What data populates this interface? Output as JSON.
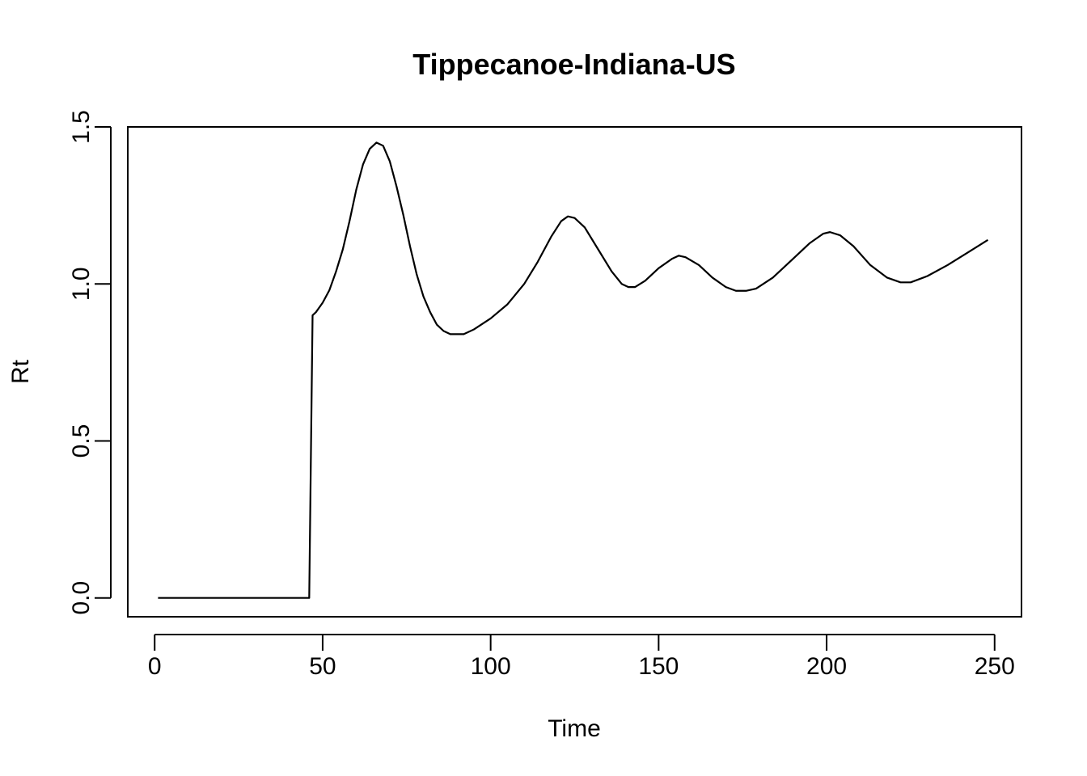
{
  "chart_data": {
    "type": "line",
    "title": "Tippecanoe-Indiana-US",
    "xlabel": "Time",
    "ylabel": "Rt",
    "xlim": [
      -8,
      258
    ],
    "ylim": [
      -0.06,
      1.5
    ],
    "xticks": [
      0,
      50,
      100,
      150,
      200,
      250
    ],
    "yticks": [
      0.0,
      0.5,
      1.0,
      1.5
    ],
    "xtick_labels": [
      "0",
      "50",
      "100",
      "150",
      "200",
      "250"
    ],
    "ytick_labels": [
      "0.0",
      "0.5",
      "1.0",
      "1.5"
    ],
    "grid": false,
    "legend": "none",
    "colors": {
      "line": "#000000"
    },
    "series": [
      {
        "points": [
          [
            1,
            0.0
          ],
          [
            10,
            0.0
          ],
          [
            20,
            0.0
          ],
          [
            30,
            0.0
          ],
          [
            40,
            0.0
          ],
          [
            46,
            0.0
          ],
          [
            47,
            0.9
          ],
          [
            48,
            0.91
          ],
          [
            50,
            0.94
          ],
          [
            52,
            0.98
          ],
          [
            54,
            1.04
          ],
          [
            56,
            1.11
          ],
          [
            58,
            1.2
          ],
          [
            60,
            1.3
          ],
          [
            62,
            1.38
          ],
          [
            64,
            1.43
          ],
          [
            66,
            1.45
          ],
          [
            68,
            1.44
          ],
          [
            70,
            1.39
          ],
          [
            72,
            1.31
          ],
          [
            74,
            1.22
          ],
          [
            76,
            1.12
          ],
          [
            78,
            1.03
          ],
          [
            80,
            0.96
          ],
          [
            82,
            0.91
          ],
          [
            84,
            0.87
          ],
          [
            86,
            0.85
          ],
          [
            88,
            0.84
          ],
          [
            90,
            0.84
          ],
          [
            92,
            0.84
          ],
          [
            95,
            0.855
          ],
          [
            100,
            0.89
          ],
          [
            105,
            0.935
          ],
          [
            110,
            1.0
          ],
          [
            114,
            1.07
          ],
          [
            118,
            1.15
          ],
          [
            121,
            1.2
          ],
          [
            123,
            1.215
          ],
          [
            125,
            1.21
          ],
          [
            128,
            1.18
          ],
          [
            132,
            1.11
          ],
          [
            136,
            1.04
          ],
          [
            139,
            1.0
          ],
          [
            141,
            0.99
          ],
          [
            143,
            0.99
          ],
          [
            146,
            1.01
          ],
          [
            150,
            1.05
          ],
          [
            154,
            1.08
          ],
          [
            156,
            1.09
          ],
          [
            158,
            1.085
          ],
          [
            162,
            1.06
          ],
          [
            166,
            1.02
          ],
          [
            170,
            0.99
          ],
          [
            173,
            0.978
          ],
          [
            176,
            0.978
          ],
          [
            179,
            0.985
          ],
          [
            184,
            1.02
          ],
          [
            190,
            1.08
          ],
          [
            195,
            1.13
          ],
          [
            199,
            1.16
          ],
          [
            201,
            1.165
          ],
          [
            204,
            1.155
          ],
          [
            208,
            1.12
          ],
          [
            213,
            1.06
          ],
          [
            218,
            1.02
          ],
          [
            222,
            1.005
          ],
          [
            225,
            1.005
          ],
          [
            230,
            1.025
          ],
          [
            236,
            1.06
          ],
          [
            242,
            1.1
          ],
          [
            248,
            1.14
          ]
        ]
      }
    ]
  }
}
